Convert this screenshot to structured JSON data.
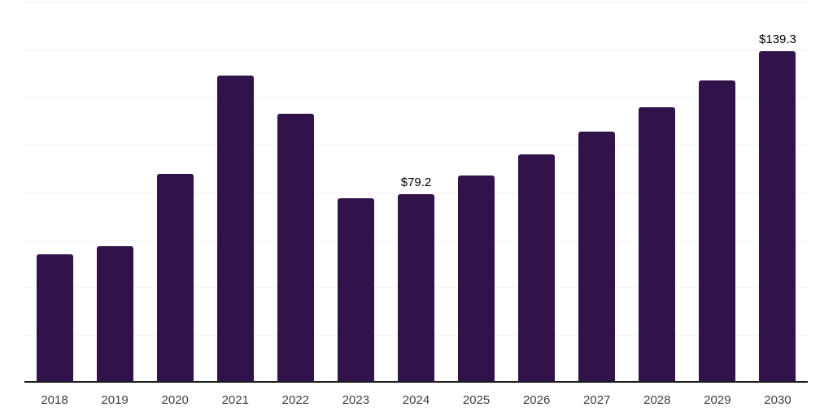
{
  "chart_data": {
    "type": "bar",
    "title": "",
    "xlabel": "",
    "ylabel": "",
    "categories": [
      "2018",
      "2019",
      "2020",
      "2021",
      "2022",
      "2023",
      "2024",
      "2025",
      "2026",
      "2027",
      "2028",
      "2029",
      "2030"
    ],
    "values": [
      53.9,
      57.2,
      87.8,
      129.2,
      113.1,
      77.6,
      79.2,
      87.1,
      95.9,
      105.4,
      115.7,
      127.0,
      139.3
    ],
    "bar_labels": {
      "2024": "$79.2",
      "2030": "$139.3"
    },
    "ylim": [
      0,
      160
    ],
    "gridline_step": 20,
    "grid": "horizontal-only",
    "legend": "none",
    "y_tick_labels_visible": false,
    "colors": {
      "bar": "#32124a",
      "axis_line": "#1a1a1a",
      "gridline": "#f2f2f2",
      "tick_label": "#404040",
      "value_label": "#000000",
      "background": "#ffffff"
    }
  }
}
